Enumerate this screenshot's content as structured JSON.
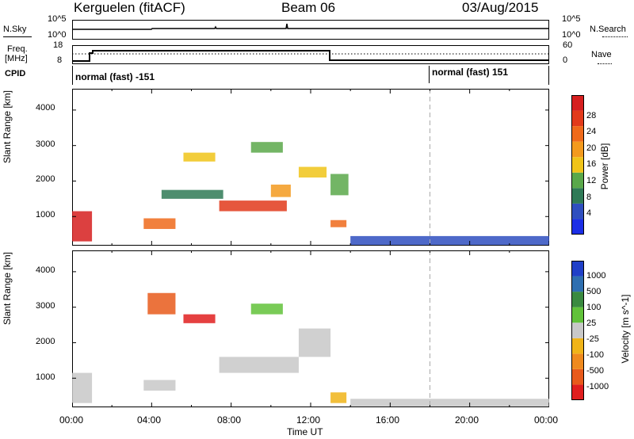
{
  "header": {
    "station": "Kerguelen (fitACF)",
    "beam": "Beam 06",
    "date": "03/Aug/2015"
  },
  "top_panels": {
    "nsky_label": "N.Sky",
    "nsky_ticks": [
      "10^5",
      "10^0"
    ],
    "nsearch_label": "N.Search",
    "nsearch_ticks": [
      "10^5",
      "10^0"
    ],
    "freq_label_1": "Freq.",
    "freq_label_2": "[MHz]",
    "freq_ticks": [
      "18",
      "8"
    ],
    "nave_label": "Nave",
    "nave_ticks": [
      "60",
      "0"
    ],
    "cpid_label": "CPID",
    "cpid_segments": [
      {
        "text": "normal (fast) -151",
        "start_hour": 0
      },
      {
        "text": "normal (fast) 151",
        "start_hour": 18
      }
    ]
  },
  "x_axis": {
    "label": "Time UT",
    "ticks": [
      "00:00",
      "04:00",
      "08:00",
      "12:00",
      "16:00",
      "20:00",
      "00:00"
    ]
  },
  "chart_data": [
    {
      "type": "heatmap",
      "panel": "power",
      "ylabel": "Slant Range [km]",
      "yticks": [
        1000,
        2000,
        3000,
        4000
      ],
      "ylim": [
        180,
        4600
      ],
      "xlim_hours": [
        0,
        24
      ],
      "colorbar_label": "Power [dB]",
      "colorbar_ticks": [
        "4",
        "8",
        "12",
        "16",
        "20",
        "24",
        "28"
      ],
      "colorbar_colors": [
        "#1b2ee6",
        "#2f4fbf",
        "#2f7a56",
        "#5aa84a",
        "#f0c419",
        "#f39a1e",
        "#ef6a1b",
        "#e23a1b",
        "#d61f1f"
      ],
      "regions": [
        {
          "t0": 0.0,
          "t1": 1.0,
          "r0": 300,
          "r1": 1150,
          "level": 8
        },
        {
          "t0": 3.6,
          "t1": 5.2,
          "r0": 650,
          "r1": 950,
          "level": 6
        },
        {
          "t0": 5.6,
          "t1": 7.2,
          "r0": 2550,
          "r1": 2800,
          "level": 4
        },
        {
          "t0": 7.4,
          "t1": 10.8,
          "r0": 1150,
          "r1": 1450,
          "level": 7
        },
        {
          "t0": 10.0,
          "t1": 11.0,
          "r0": 1550,
          "r1": 1900,
          "level": 5
        },
        {
          "t0": 11.4,
          "t1": 12.8,
          "r0": 2100,
          "r1": 2400,
          "level": 4
        },
        {
          "t0": 13.0,
          "t1": 13.8,
          "r0": 700,
          "r1": 900,
          "level": 6
        },
        {
          "t0": 13.0,
          "t1": 13.9,
          "r0": 1600,
          "r1": 2200,
          "level": 3
        },
        {
          "t0": 4.5,
          "t1": 7.6,
          "r0": 1500,
          "r1": 1750,
          "level": 2
        },
        {
          "t0": 9.0,
          "t1": 10.6,
          "r0": 2800,
          "r1": 3100,
          "level": 3
        },
        {
          "t0": 14.0,
          "t1": 24.0,
          "r0": 200,
          "r1": 450,
          "level": 1
        }
      ]
    },
    {
      "type": "heatmap",
      "panel": "velocity",
      "ylabel": "Slant Range [km]",
      "yticks": [
        1000,
        2000,
        3000,
        4000
      ],
      "ylim": [
        180,
        4600
      ],
      "xlim_hours": [
        0,
        24
      ],
      "colorbar_label": "Velocity [m s^-1]",
      "colorbar_ticks": [
        "1000",
        "500",
        "100",
        "25",
        "-25",
        "-100",
        "-500",
        "-1000"
      ],
      "colorbar_colors": [
        "#2040c8",
        "#2f6fb0",
        "#3a8a40",
        "#61c23a",
        "#c8c8c8",
        "#f0b419",
        "#ef8a1e",
        "#e85a1b",
        "#e01e1e"
      ],
      "regions": [
        {
          "t0": 0.0,
          "t1": 1.0,
          "r0": 300,
          "r1": 1150,
          "level": 4
        },
        {
          "t0": 3.6,
          "t1": 5.2,
          "r0": 650,
          "r1": 950,
          "level": 4
        },
        {
          "t0": 5.6,
          "t1": 7.2,
          "r0": 2550,
          "r1": 2800,
          "level": 8
        },
        {
          "t0": 3.8,
          "t1": 5.2,
          "r0": 2800,
          "r1": 3400,
          "level": 7
        },
        {
          "t0": 7.4,
          "t1": 11.4,
          "r0": 1150,
          "r1": 1600,
          "level": 4
        },
        {
          "t0": 11.4,
          "t1": 13.0,
          "r0": 1600,
          "r1": 2400,
          "level": 4
        },
        {
          "t0": 13.0,
          "t1": 13.8,
          "r0": 300,
          "r1": 600,
          "level": 5
        },
        {
          "t0": 14.0,
          "t1": 24.0,
          "r0": 200,
          "r1": 420,
          "level": 4
        },
        {
          "t0": 9.0,
          "t1": 10.6,
          "r0": 2800,
          "r1": 3100,
          "level": 3
        }
      ]
    }
  ],
  "marker": {
    "hour": 18
  }
}
